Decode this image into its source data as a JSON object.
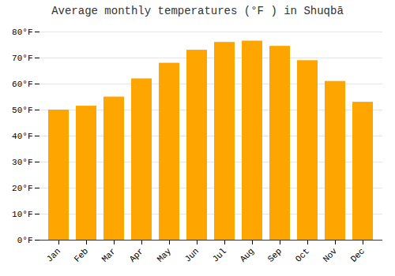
{
  "chart_data": {
    "type": "bar",
    "title": "Average monthly temperatures (°F ) in Shuqbā",
    "categories": [
      "Jan",
      "Feb",
      "Mar",
      "Apr",
      "May",
      "Jun",
      "Jul",
      "Aug",
      "Sep",
      "Oct",
      "Nov",
      "Dec"
    ],
    "values": [
      50,
      51.5,
      55,
      62,
      68,
      73,
      76,
      76.5,
      74.5,
      69,
      61,
      53
    ],
    "color": "#FFA500",
    "ylim": [
      0,
      80
    ],
    "yticks": [
      {
        "value": 0,
        "label": "0°F"
      },
      {
        "value": 10,
        "label": "10°F"
      },
      {
        "value": 20,
        "label": "20°F"
      },
      {
        "value": 30,
        "label": "30°F"
      },
      {
        "value": 40,
        "label": "40°F"
      },
      {
        "value": 50,
        "label": "50°F"
      },
      {
        "value": 60,
        "label": "60°F"
      },
      {
        "value": 70,
        "label": "70°F"
      },
      {
        "value": 80,
        "label": "80°F"
      }
    ],
    "grid": true
  }
}
